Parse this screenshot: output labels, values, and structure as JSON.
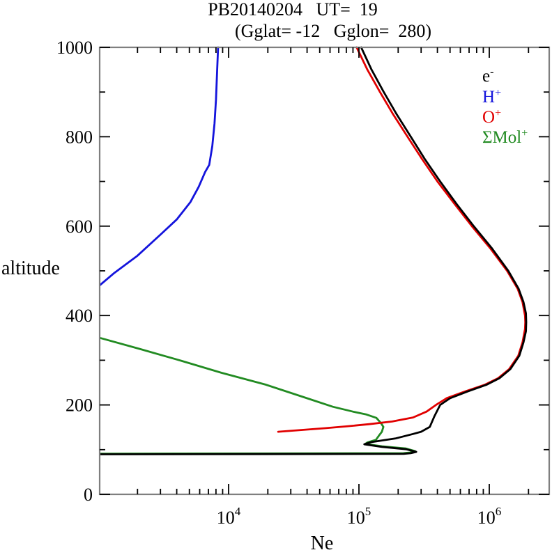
{
  "title": {
    "line1": "PB20140204   UT=  19",
    "line2": "(Gglat= -12   Gglon=  280)"
  },
  "chart_data": {
    "type": "line",
    "xlabel": "Ne",
    "ylabel": "altitude",
    "x_scale": "log",
    "xlim": [
      1030,
      2880000
    ],
    "ylim": [
      0,
      1000
    ],
    "grid": false,
    "x_major_ticks": [
      {
        "base": "10",
        "exp": "4",
        "value": 10000
      },
      {
        "base": "10",
        "exp": "5",
        "value": 100000
      },
      {
        "base": "10",
        "exp": "6",
        "value": 1000000
      }
    ],
    "y_major_ticks": [
      0,
      200,
      400,
      600,
      800,
      1000
    ],
    "y_minor_ticks": [
      100,
      300,
      500,
      700,
      900
    ],
    "axis_color": "#7f7f7f",
    "tick_color": "#000000",
    "legend_position": "upper-right-inside",
    "legend": [
      {
        "label": "e",
        "sup": "-",
        "color": "#000000"
      },
      {
        "label": "H",
        "sup": "+",
        "color": "#1414dc"
      },
      {
        "label": "O",
        "sup": "+",
        "color": "#e10000"
      },
      {
        "label": "ΣMol",
        "sup": "+",
        "color": "#228b22"
      }
    ],
    "series": [
      {
        "name": "SigmaMol+",
        "color": "#228b22",
        "points": [
          [
            1030,
            350
          ],
          [
            2100,
            325
          ],
          [
            4300,
            299
          ],
          [
            8800,
            272
          ],
          [
            19000,
            246
          ],
          [
            40000,
            215
          ],
          [
            63000,
            196
          ],
          [
            90000,
            185
          ],
          [
            113000,
            179
          ],
          [
            136000,
            171
          ],
          [
            147000,
            160
          ],
          [
            154000,
            151
          ],
          [
            150000,
            140
          ],
          [
            142000,
            131
          ],
          [
            135000,
            122
          ],
          [
            116000,
            116
          ],
          [
            112000,
            113
          ],
          [
            150000,
            107.5
          ],
          [
            230000,
            102.5
          ],
          [
            270000,
            96.5
          ],
          [
            245000,
            93.5
          ],
          [
            220000,
            92
          ],
          [
            1030,
            91
          ]
        ]
      },
      {
        "name": "O+",
        "color": "#e10000",
        "points": [
          [
            96000,
            1000
          ],
          [
            116000,
            950
          ],
          [
            145000,
            900
          ],
          [
            183000,
            850
          ],
          [
            236000,
            800
          ],
          [
            305000,
            750
          ],
          [
            400000,
            700
          ],
          [
            540000,
            650
          ],
          [
            735000,
            600
          ],
          [
            1020000,
            550
          ],
          [
            1370000,
            500
          ],
          [
            1650000,
            460
          ],
          [
            1800000,
            430
          ],
          [
            1880000,
            400
          ],
          [
            1890000,
            385
          ],
          [
            1880000,
            370
          ],
          [
            1800000,
            340
          ],
          [
            1670000,
            310
          ],
          [
            1420000,
            280
          ],
          [
            1170000,
            260
          ],
          [
            920000,
            245
          ],
          [
            650000,
            230
          ],
          [
            470000,
            215
          ],
          [
            390000,
            200
          ],
          [
            330000,
            185
          ],
          [
            260000,
            172
          ],
          [
            180000,
            163
          ],
          [
            120000,
            157
          ],
          [
            80000,
            152
          ],
          [
            55000,
            148
          ],
          [
            36000,
            144
          ],
          [
            24000,
            140
          ]
        ]
      },
      {
        "name": "H+",
        "color": "#1414dc",
        "points": [
          [
            1030,
            468
          ],
          [
            1310,
            494
          ],
          [
            2000,
            534
          ],
          [
            3000,
            581
          ],
          [
            4000,
            615
          ],
          [
            4500,
            634
          ],
          [
            5100,
            654
          ],
          [
            5900,
            688
          ],
          [
            6600,
            721
          ],
          [
            7100,
            737
          ],
          [
            7500,
            779
          ],
          [
            7800,
            830
          ],
          [
            8000,
            883
          ],
          [
            8170,
            950
          ],
          [
            8300,
            1000
          ]
        ]
      },
      {
        "name": "e-",
        "color": "#000000",
        "points": [
          [
            104000,
            1000
          ],
          [
            125000,
            950
          ],
          [
            155000,
            900
          ],
          [
            195000,
            850
          ],
          [
            250000,
            800
          ],
          [
            320000,
            750
          ],
          [
            420000,
            700
          ],
          [
            560000,
            650
          ],
          [
            760000,
            600
          ],
          [
            1050000,
            550
          ],
          [
            1400000,
            500
          ],
          [
            1680000,
            460
          ],
          [
            1830000,
            430
          ],
          [
            1910000,
            405
          ],
          [
            1920000,
            385
          ],
          [
            1910000,
            365
          ],
          [
            1830000,
            340
          ],
          [
            1700000,
            310
          ],
          [
            1450000,
            280
          ],
          [
            1200000,
            260
          ],
          [
            950000,
            245
          ],
          [
            680000,
            230
          ],
          [
            500000,
            215
          ],
          [
            420000,
            200
          ],
          [
            380000,
            175
          ],
          [
            350000,
            151
          ],
          [
            300000,
            140
          ],
          [
            260000,
            135
          ],
          [
            190000,
            125
          ],
          [
            125000,
            117
          ],
          [
            110000,
            112
          ],
          [
            150000,
            106
          ],
          [
            230000,
            101
          ],
          [
            275000,
            95
          ],
          [
            250000,
            92
          ],
          [
            220000,
            90.5
          ],
          [
            1030,
            89.5
          ]
        ]
      }
    ]
  }
}
